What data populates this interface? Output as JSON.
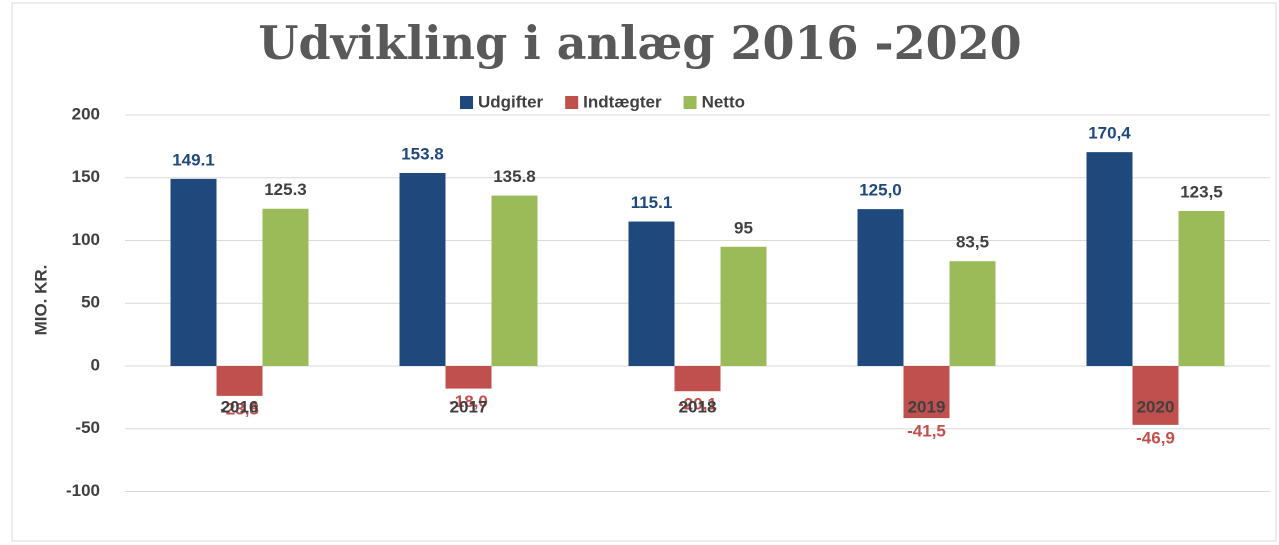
{
  "chart_data": {
    "type": "bar",
    "title": "Udvikling i anlæg 2016 -2020",
    "y_label": "MIO. KR.",
    "categories": [
      "2016",
      "2017",
      "2018",
      "2019",
      "2020"
    ],
    "series": [
      {
        "name": "Udgifter",
        "color": "#1f497d",
        "values": [
          149.1,
          153.8,
          115.1,
          125.0,
          170.4
        ],
        "value_labels": [
          "149.1",
          "153.8",
          "115.1",
          "125,0",
          "170,4"
        ]
      },
      {
        "name": "Indtægter",
        "color": "#c0504d",
        "values": [
          -23.8,
          -18.0,
          -20.1,
          -41.5,
          -46.9
        ],
        "value_labels": [
          "-23,8",
          "-18,0",
          "-20,1",
          "-41,5",
          "-46,9"
        ]
      },
      {
        "name": "Netto",
        "color": "#9bbb59",
        "values": [
          125.3,
          135.8,
          95,
          83.5,
          123.5
        ],
        "value_labels": [
          "125.3",
          "135.8",
          "95",
          "83,5",
          "123,5"
        ]
      }
    ],
    "ylim": [
      -135,
      200
    ],
    "yticks": [
      -100,
      -50,
      0,
      50,
      100,
      150,
      200
    ],
    "grid": true,
    "legend": "top"
  }
}
